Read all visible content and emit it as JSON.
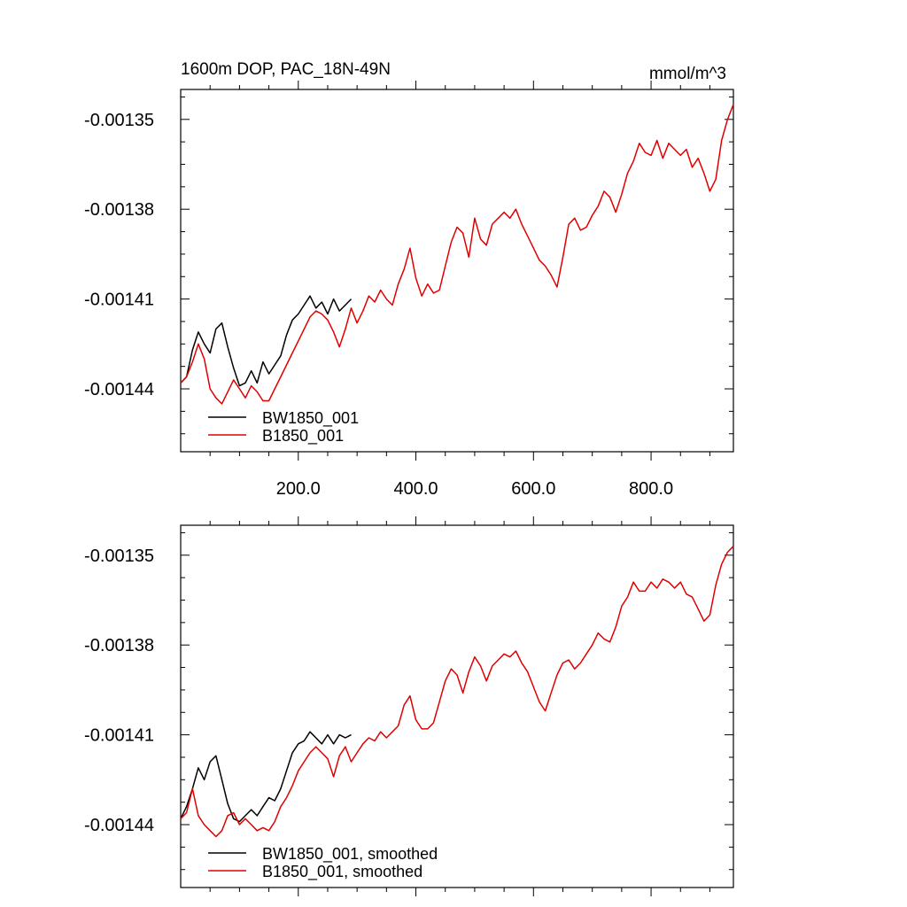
{
  "chart_data": [
    {
      "type": "line",
      "title": "1600m DOP, PAC_18N-49N",
      "units": "mmol/m^3",
      "xlim": [
        0,
        940
      ],
      "ylim": [
        -0.001461,
        -0.00134
      ],
      "yticks": [
        -0.00144,
        -0.00141,
        -0.00138,
        -0.00135
      ],
      "ytick_labels": [
        "-0.00144",
        "-0.00141",
        "-0.00138",
        "-0.00135"
      ],
      "xticks": [
        200,
        400,
        600,
        800
      ],
      "xtick_labels": [
        "200.0",
        "400.0",
        "600.0",
        "800.0"
      ],
      "legend_position": "bottom-left",
      "series": [
        {
          "name": "BW1850_001",
          "color": "#000000",
          "x": [
            0,
            10,
            20,
            30,
            40,
            50,
            60,
            70,
            80,
            90,
            100,
            110,
            120,
            130,
            140,
            150,
            160,
            170,
            180,
            190,
            200,
            210,
            220,
            230,
            240,
            250,
            260,
            270,
            280,
            290
          ],
          "values": [
            -0.001438,
            -0.001436,
            -0.001427,
            -0.001421,
            -0.001425,
            -0.001428,
            -0.00142,
            -0.001418,
            -0.001426,
            -0.001433,
            -0.001439,
            -0.001438,
            -0.001434,
            -0.001438,
            -0.001431,
            -0.001435,
            -0.001432,
            -0.001429,
            -0.001422,
            -0.001417,
            -0.001415,
            -0.001412,
            -0.001409,
            -0.001413,
            -0.001411,
            -0.001415,
            -0.00141,
            -0.001414,
            -0.001412,
            -0.00141
          ]
        },
        {
          "name": "B1850_001",
          "color": "#e00000",
          "x": [
            0,
            10,
            20,
            30,
            40,
            50,
            60,
            70,
            80,
            90,
            100,
            110,
            120,
            130,
            140,
            150,
            160,
            170,
            180,
            190,
            200,
            210,
            220,
            230,
            240,
            250,
            260,
            270,
            280,
            290,
            300,
            310,
            320,
            330,
            340,
            350,
            360,
            370,
            380,
            390,
            400,
            410,
            420,
            430,
            440,
            450,
            460,
            470,
            480,
            490,
            500,
            510,
            520,
            530,
            540,
            550,
            560,
            570,
            580,
            590,
            600,
            610,
            620,
            630,
            640,
            650,
            660,
            670,
            680,
            690,
            700,
            710,
            720,
            730,
            740,
            750,
            760,
            770,
            780,
            790,
            800,
            810,
            820,
            830,
            840,
            850,
            860,
            870,
            880,
            890,
            900,
            910,
            920,
            930,
            940
          ],
          "values": [
            -0.001438,
            -0.001436,
            -0.001431,
            -0.001425,
            -0.00143,
            -0.00144,
            -0.001443,
            -0.001445,
            -0.001441,
            -0.001437,
            -0.00144,
            -0.001443,
            -0.001439,
            -0.001441,
            -0.001444,
            -0.001444,
            -0.00144,
            -0.001436,
            -0.001432,
            -0.001428,
            -0.001424,
            -0.00142,
            -0.001416,
            -0.001414,
            -0.001415,
            -0.001417,
            -0.001421,
            -0.001426,
            -0.00142,
            -0.001413,
            -0.001418,
            -0.001414,
            -0.001409,
            -0.001411,
            -0.001407,
            -0.00141,
            -0.001412,
            -0.001405,
            -0.0014,
            -0.001393,
            -0.001403,
            -0.001409,
            -0.001405,
            -0.001408,
            -0.001407,
            -0.001399,
            -0.001391,
            -0.001386,
            -0.001388,
            -0.001396,
            -0.001383,
            -0.00139,
            -0.001392,
            -0.001385,
            -0.001383,
            -0.001381,
            -0.001383,
            -0.00138,
            -0.001385,
            -0.001389,
            -0.001393,
            -0.001397,
            -0.001399,
            -0.001402,
            -0.001406,
            -0.001396,
            -0.001385,
            -0.001383,
            -0.001387,
            -0.001386,
            -0.001382,
            -0.001379,
            -0.001374,
            -0.001376,
            -0.001381,
            -0.001375,
            -0.001368,
            -0.001364,
            -0.001358,
            -0.001361,
            -0.001362,
            -0.001357,
            -0.001363,
            -0.001358,
            -0.00136,
            -0.001362,
            -0.00136,
            -0.001366,
            -0.001363,
            -0.001368,
            -0.001374,
            -0.00137,
            -0.001357,
            -0.00135,
            -0.001345
          ]
        }
      ]
    },
    {
      "type": "line",
      "xlim": [
        0,
        940
      ],
      "ylim": [
        -0.001461,
        -0.00134
      ],
      "yticks": [
        -0.00144,
        -0.00141,
        -0.00138,
        -0.00135
      ],
      "ytick_labels": [
        "-0.00144",
        "-0.00141",
        "-0.00138",
        "-0.00135"
      ],
      "legend_position": "bottom-left",
      "series": [
        {
          "name": "BW1850_001, smoothed",
          "color": "#000000",
          "x": [
            0,
            10,
            20,
            30,
            40,
            50,
            60,
            70,
            80,
            90,
            100,
            110,
            120,
            130,
            140,
            150,
            160,
            170,
            180,
            190,
            200,
            210,
            220,
            230,
            240,
            250,
            260,
            270,
            280,
            290
          ],
          "values": [
            -0.001438,
            -0.001434,
            -0.001428,
            -0.001421,
            -0.001425,
            -0.001419,
            -0.001417,
            -0.001425,
            -0.001433,
            -0.001438,
            -0.001439,
            -0.001437,
            -0.001435,
            -0.001437,
            -0.001434,
            -0.001431,
            -0.001432,
            -0.001428,
            -0.001422,
            -0.001416,
            -0.001413,
            -0.001412,
            -0.001409,
            -0.001411,
            -0.001413,
            -0.00141,
            -0.001413,
            -0.00141,
            -0.001411,
            -0.00141
          ]
        },
        {
          "name": "B1850_001, smoothed",
          "color": "#e00000",
          "x": [
            0,
            10,
            20,
            30,
            40,
            50,
            60,
            70,
            80,
            90,
            100,
            110,
            120,
            130,
            140,
            150,
            160,
            170,
            180,
            190,
            200,
            210,
            220,
            230,
            240,
            250,
            260,
            270,
            280,
            290,
            300,
            310,
            320,
            330,
            340,
            350,
            360,
            370,
            380,
            390,
            400,
            410,
            420,
            430,
            440,
            450,
            460,
            470,
            480,
            490,
            500,
            510,
            520,
            530,
            540,
            550,
            560,
            570,
            580,
            590,
            600,
            610,
            620,
            630,
            640,
            650,
            660,
            670,
            680,
            690,
            700,
            710,
            720,
            730,
            740,
            750,
            760,
            770,
            780,
            790,
            800,
            810,
            820,
            830,
            840,
            850,
            860,
            870,
            880,
            890,
            900,
            910,
            920,
            930,
            940
          ],
          "values": [
            -0.001438,
            -0.001436,
            -0.001428,
            -0.001437,
            -0.00144,
            -0.001442,
            -0.001444,
            -0.001442,
            -0.001437,
            -0.001436,
            -0.00144,
            -0.001438,
            -0.00144,
            -0.001442,
            -0.001441,
            -0.001442,
            -0.001439,
            -0.001434,
            -0.001431,
            -0.001427,
            -0.001422,
            -0.001419,
            -0.001416,
            -0.001414,
            -0.001416,
            -0.001418,
            -0.001424,
            -0.001417,
            -0.001414,
            -0.001419,
            -0.001416,
            -0.001413,
            -0.001411,
            -0.001412,
            -0.001409,
            -0.001411,
            -0.001409,
            -0.001407,
            -0.0014,
            -0.001397,
            -0.001405,
            -0.001408,
            -0.001408,
            -0.001406,
            -0.001399,
            -0.001392,
            -0.001388,
            -0.00139,
            -0.001396,
            -0.001389,
            -0.001384,
            -0.001387,
            -0.001392,
            -0.001387,
            -0.001385,
            -0.001383,
            -0.001384,
            -0.001382,
            -0.001386,
            -0.001389,
            -0.001394,
            -0.001399,
            -0.001402,
            -0.001396,
            -0.00139,
            -0.001386,
            -0.001385,
            -0.001388,
            -0.001386,
            -0.001383,
            -0.00138,
            -0.001376,
            -0.001378,
            -0.001379,
            -0.001374,
            -0.001367,
            -0.001364,
            -0.001359,
            -0.001362,
            -0.001362,
            -0.001359,
            -0.001361,
            -0.001358,
            -0.001359,
            -0.001361,
            -0.001359,
            -0.001363,
            -0.001364,
            -0.001368,
            -0.001372,
            -0.00137,
            -0.00136,
            -0.001353,
            -0.001349,
            -0.001347
          ]
        }
      ]
    }
  ]
}
